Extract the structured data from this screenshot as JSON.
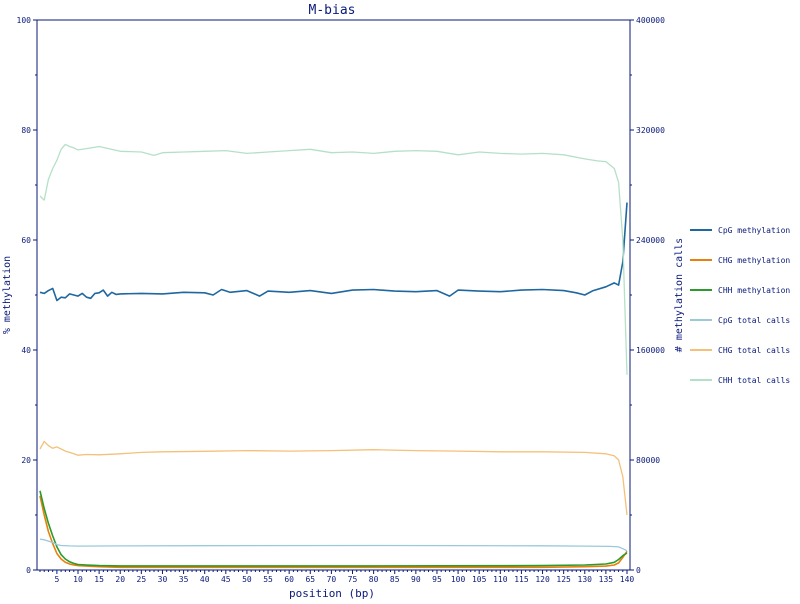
{
  "chart_data": {
    "type": "line",
    "title": "M-bias",
    "xlabel": "position (bp)",
    "ylabel_left": "% methylation",
    "ylabel_right": "# methylation calls",
    "xlim": [
      1,
      140
    ],
    "ylim_left": [
      0,
      100
    ],
    "ylim_right": [
      0,
      400000
    ],
    "x_ticks": [
      "5",
      "10",
      "15",
      "20",
      "25",
      "30",
      "35",
      "40",
      "45",
      "50",
      "55",
      "60",
      "65",
      "70",
      "75",
      "80",
      "85",
      "90",
      "95",
      "100",
      "105",
      "110",
      "115",
      "120",
      "125",
      "130",
      "135",
      "140"
    ],
    "y_ticks_left": [
      "0",
      "20",
      "40",
      "60",
      "80",
      "100"
    ],
    "y_ticks_right": [
      "0",
      "80000",
      "160000",
      "240000",
      "320000",
      "400000"
    ],
    "grid": false,
    "legend_position": "right",
    "series": [
      {
        "name": "CpG methylation",
        "axis": "left",
        "color": "#1f67a0",
        "points": [
          [
            1,
            50.5
          ],
          [
            2,
            50.3
          ],
          [
            3,
            50.8
          ],
          [
            4,
            51.2
          ],
          [
            5,
            49.0
          ],
          [
            6,
            49.6
          ],
          [
            7,
            49.5
          ],
          [
            8,
            50.2
          ],
          [
            9,
            50.0
          ],
          [
            10,
            49.8
          ],
          [
            11,
            50.3
          ],
          [
            12,
            49.6
          ],
          [
            13,
            49.4
          ],
          [
            14,
            50.3
          ],
          [
            15,
            50.4
          ],
          [
            16,
            50.9
          ],
          [
            17,
            49.8
          ],
          [
            18,
            50.5
          ],
          [
            19,
            50.1
          ],
          [
            20,
            50.2
          ],
          [
            25,
            50.3
          ],
          [
            30,
            50.2
          ],
          [
            35,
            50.5
          ],
          [
            40,
            50.4
          ],
          [
            42,
            50.0
          ],
          [
            44,
            51.0
          ],
          [
            46,
            50.5
          ],
          [
            50,
            50.8
          ],
          [
            53,
            49.8
          ],
          [
            55,
            50.7
          ],
          [
            60,
            50.5
          ],
          [
            65,
            50.8
          ],
          [
            70,
            50.3
          ],
          [
            75,
            50.9
          ],
          [
            80,
            51.0
          ],
          [
            85,
            50.7
          ],
          [
            90,
            50.6
          ],
          [
            95,
            50.8
          ],
          [
            98,
            49.8
          ],
          [
            100,
            50.9
          ],
          [
            105,
            50.7
          ],
          [
            110,
            50.6
          ],
          [
            115,
            50.9
          ],
          [
            120,
            51.0
          ],
          [
            125,
            50.8
          ],
          [
            128,
            50.4
          ],
          [
            130,
            50.0
          ],
          [
            132,
            50.8
          ],
          [
            135,
            51.5
          ],
          [
            137,
            52.2
          ],
          [
            138,
            51.8
          ],
          [
            139,
            56.0
          ],
          [
            140,
            66.8
          ]
        ]
      },
      {
        "name": "CHG methylation",
        "axis": "left",
        "color": "#e8800c",
        "points": [
          [
            1,
            13.5
          ],
          [
            2,
            10.0
          ],
          [
            3,
            7.0
          ],
          [
            4,
            4.8
          ],
          [
            5,
            3.0
          ],
          [
            6,
            2.0
          ],
          [
            7,
            1.4
          ],
          [
            8,
            1.1
          ],
          [
            9,
            0.9
          ],
          [
            10,
            0.8
          ],
          [
            12,
            0.7
          ],
          [
            15,
            0.6
          ],
          [
            20,
            0.5
          ],
          [
            40,
            0.5
          ],
          [
            80,
            0.5
          ],
          [
            120,
            0.5
          ],
          [
            130,
            0.6
          ],
          [
            135,
            0.7
          ],
          [
            137,
            0.9
          ],
          [
            138,
            1.3
          ],
          [
            139,
            2.3
          ],
          [
            140,
            3.4
          ]
        ]
      },
      {
        "name": "CHH methylation",
        "axis": "left",
        "color": "#2c9a2c",
        "points": [
          [
            1,
            14.4
          ],
          [
            2,
            11.2
          ],
          [
            3,
            8.5
          ],
          [
            4,
            6.2
          ],
          [
            5,
            4.2
          ],
          [
            6,
            2.8
          ],
          [
            7,
            2.0
          ],
          [
            8,
            1.5
          ],
          [
            9,
            1.2
          ],
          [
            10,
            1.0
          ],
          [
            12,
            0.9
          ],
          [
            15,
            0.8
          ],
          [
            20,
            0.75
          ],
          [
            40,
            0.75
          ],
          [
            80,
            0.75
          ],
          [
            120,
            0.8
          ],
          [
            130,
            0.9
          ],
          [
            135,
            1.1
          ],
          [
            137,
            1.4
          ],
          [
            138,
            1.9
          ],
          [
            139,
            2.6
          ],
          [
            140,
            3.1
          ]
        ]
      },
      {
        "name": "CpG total calls",
        "axis": "right",
        "color": "#9ac9dc",
        "points": [
          [
            1,
            22500
          ],
          [
            2,
            22000
          ],
          [
            3,
            21000
          ],
          [
            4,
            20000
          ],
          [
            5,
            18500
          ],
          [
            6,
            17800
          ],
          [
            8,
            17500
          ],
          [
            10,
            17400
          ],
          [
            20,
            17500
          ],
          [
            40,
            17700
          ],
          [
            80,
            17800
          ],
          [
            120,
            17600
          ],
          [
            130,
            17400
          ],
          [
            136,
            17200
          ],
          [
            138,
            16800
          ],
          [
            139,
            15500
          ],
          [
            140,
            14000
          ]
        ]
      },
      {
        "name": "CHG total calls",
        "axis": "right",
        "color": "#f5c07a",
        "points": [
          [
            1,
            88000
          ],
          [
            2,
            93500
          ],
          [
            3,
            90500
          ],
          [
            4,
            88500
          ],
          [
            5,
            89500
          ],
          [
            6,
            88000
          ],
          [
            7,
            86500
          ],
          [
            8,
            85500
          ],
          [
            9,
            84500
          ],
          [
            10,
            83500
          ],
          [
            12,
            84000
          ],
          [
            15,
            83800
          ],
          [
            20,
            84500
          ],
          [
            25,
            85500
          ],
          [
            30,
            86000
          ],
          [
            40,
            86300
          ],
          [
            50,
            86800
          ],
          [
            60,
            86500
          ],
          [
            70,
            86800
          ],
          [
            80,
            87500
          ],
          [
            90,
            86800
          ],
          [
            100,
            86500
          ],
          [
            110,
            86000
          ],
          [
            120,
            86000
          ],
          [
            130,
            85500
          ],
          [
            135,
            84500
          ],
          [
            137,
            83000
          ],
          [
            138,
            80000
          ],
          [
            139,
            68000
          ],
          [
            140,
            40000
          ]
        ]
      },
      {
        "name": "CHH total calls",
        "axis": "right",
        "color": "#b5e0c8",
        "points": [
          [
            1,
            272000
          ],
          [
            2,
            269000
          ],
          [
            3,
            284000
          ],
          [
            4,
            292000
          ],
          [
            5,
            298000
          ],
          [
            6,
            306000
          ],
          [
            7,
            309500
          ],
          [
            8,
            308000
          ],
          [
            9,
            307000
          ],
          [
            10,
            305500
          ],
          [
            12,
            306500
          ],
          [
            15,
            308000
          ],
          [
            20,
            304500
          ],
          [
            25,
            304000
          ],
          [
            28,
            301500
          ],
          [
            30,
            303500
          ],
          [
            35,
            304000
          ],
          [
            40,
            304500
          ],
          [
            45,
            305000
          ],
          [
            50,
            303000
          ],
          [
            55,
            304000
          ],
          [
            60,
            305000
          ],
          [
            65,
            306000
          ],
          [
            70,
            303500
          ],
          [
            75,
            304000
          ],
          [
            80,
            303000
          ],
          [
            85,
            304500
          ],
          [
            90,
            305000
          ],
          [
            95,
            304500
          ],
          [
            100,
            302000
          ],
          [
            105,
            304000
          ],
          [
            110,
            303000
          ],
          [
            115,
            302500
          ],
          [
            120,
            303000
          ],
          [
            125,
            302000
          ],
          [
            130,
            299000
          ],
          [
            133,
            297500
          ],
          [
            135,
            297000
          ],
          [
            137,
            292000
          ],
          [
            138,
            282000
          ],
          [
            139,
            240000
          ],
          [
            140,
            142000
          ]
        ]
      }
    ]
  }
}
